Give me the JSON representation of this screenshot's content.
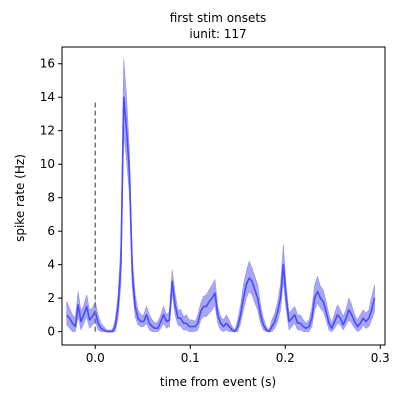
{
  "chart_data": {
    "type": "line",
    "title": "first stim onsets",
    "subtitle": "iunit: 117",
    "xlabel": "time from event (s)",
    "ylabel": "spike rate (Hz)",
    "xlim": [
      -0.035,
      0.305
    ],
    "ylim": [
      -0.8,
      17.0
    ],
    "xticks": [
      0.0,
      0.1,
      0.2,
      0.3
    ],
    "xtick_labels": [
      "0.0",
      "0.1",
      "0.2",
      "0.3"
    ],
    "yticks": [
      0,
      2,
      4,
      6,
      8,
      10,
      12,
      14,
      16
    ],
    "ytick_labels": [
      "0",
      "2",
      "4",
      "6",
      "8",
      "10",
      "12",
      "14",
      "16"
    ],
    "grid": false,
    "series": [
      {
        "name": "spike rate",
        "color": "#4b4bff",
        "band_color": "#8a8af5",
        "x": [
          -0.03,
          -0.027,
          -0.024,
          -0.021,
          -0.018,
          -0.015,
          -0.012,
          -0.009,
          -0.006,
          -0.003,
          0.0,
          0.003,
          0.006,
          0.009,
          0.012,
          0.015,
          0.018,
          0.021,
          0.024,
          0.027,
          0.03,
          0.033,
          0.036,
          0.039,
          0.042,
          0.045,
          0.048,
          0.051,
          0.054,
          0.057,
          0.06,
          0.063,
          0.066,
          0.069,
          0.072,
          0.075,
          0.078,
          0.081,
          0.084,
          0.087,
          0.09,
          0.093,
          0.096,
          0.099,
          0.102,
          0.105,
          0.108,
          0.111,
          0.114,
          0.117,
          0.12,
          0.123,
          0.126,
          0.129,
          0.132,
          0.135,
          0.138,
          0.141,
          0.144,
          0.147,
          0.15,
          0.153,
          0.156,
          0.159,
          0.162,
          0.165,
          0.168,
          0.171,
          0.174,
          0.177,
          0.18,
          0.183,
          0.186,
          0.189,
          0.192,
          0.195,
          0.198,
          0.201,
          0.204,
          0.207,
          0.21,
          0.213,
          0.216,
          0.219,
          0.222,
          0.225,
          0.228,
          0.231,
          0.234,
          0.237,
          0.24,
          0.243,
          0.246,
          0.249,
          0.252,
          0.255,
          0.258,
          0.261,
          0.264,
          0.267,
          0.27,
          0.273,
          0.276,
          0.279,
          0.282,
          0.285,
          0.288,
          0.291,
          0.294
        ],
        "mean": [
          1.0,
          0.8,
          0.5,
          0.3,
          1.6,
          0.6,
          1.0,
          1.5,
          0.7,
          0.9,
          1.2,
          0.5,
          0.2,
          0.1,
          0.0,
          0.0,
          0.0,
          0.3,
          1.5,
          4.0,
          14.0,
          12.0,
          9.5,
          3.5,
          1.5,
          0.8,
          0.6,
          0.6,
          1.0,
          0.5,
          0.3,
          0.2,
          0.2,
          0.6,
          1.0,
          0.6,
          0.7,
          3.0,
          1.6,
          0.8,
          0.8,
          0.5,
          0.5,
          0.3,
          0.3,
          0.3,
          0.5,
          1.2,
          1.5,
          1.5,
          1.8,
          2.0,
          2.3,
          1.0,
          0.5,
          0.3,
          0.5,
          0.3,
          0.1,
          0.0,
          0.3,
          1.0,
          2.0,
          2.8,
          3.2,
          3.0,
          2.5,
          2.0,
          1.0,
          0.4,
          0.1,
          0.0,
          0.3,
          0.6,
          1.2,
          2.0,
          4.0,
          2.0,
          0.6,
          0.8,
          1.0,
          0.5,
          0.5,
          0.3,
          0.2,
          0.3,
          0.8,
          2.0,
          2.4,
          2.0,
          1.8,
          1.2,
          0.5,
          0.2,
          0.6,
          1.0,
          0.8,
          0.4,
          0.8,
          1.3,
          1.0,
          0.6,
          0.3,
          0.5,
          0.8,
          0.6,
          0.8,
          1.3,
          2.0
        ],
        "lower": [
          0.4,
          0.2,
          0.0,
          0.0,
          0.9,
          0.1,
          0.5,
          0.9,
          0.2,
          0.4,
          0.6,
          0.1,
          0.0,
          0.0,
          0.0,
          0.0,
          0.0,
          0.0,
          0.8,
          2.8,
          11.8,
          10.2,
          8.2,
          2.6,
          0.9,
          0.4,
          0.3,
          0.3,
          0.5,
          0.1,
          0.0,
          0.0,
          0.0,
          0.2,
          0.5,
          0.2,
          0.3,
          2.3,
          1.0,
          0.4,
          0.3,
          0.1,
          0.1,
          0.0,
          0.0,
          0.0,
          0.1,
          0.7,
          0.9,
          0.9,
          1.1,
          1.3,
          1.6,
          0.5,
          0.1,
          0.0,
          0.1,
          0.0,
          0.0,
          0.0,
          0.0,
          0.5,
          1.3,
          2.0,
          2.4,
          2.2,
          1.7,
          1.3,
          0.5,
          0.1,
          0.0,
          0.0,
          0.0,
          0.2,
          0.6,
          1.3,
          3.0,
          1.3,
          0.1,
          0.3,
          0.5,
          0.1,
          0.1,
          0.0,
          0.0,
          0.0,
          0.3,
          1.3,
          1.7,
          1.4,
          1.2,
          0.7,
          0.1,
          0.0,
          0.2,
          0.5,
          0.4,
          0.1,
          0.4,
          0.7,
          0.5,
          0.2,
          0.0,
          0.1,
          0.4,
          0.2,
          0.3,
          0.7,
          1.2
        ],
        "upper": [
          1.8,
          1.4,
          1.0,
          0.8,
          2.4,
          1.2,
          1.6,
          2.2,
          1.3,
          1.4,
          1.8,
          1.0,
          0.5,
          0.3,
          0.1,
          0.1,
          0.1,
          0.7,
          2.2,
          5.3,
          16.3,
          14.0,
          10.7,
          4.5,
          2.2,
          1.3,
          1.0,
          1.0,
          1.5,
          1.0,
          0.7,
          0.5,
          0.6,
          1.0,
          1.5,
          1.0,
          1.2,
          3.7,
          2.3,
          1.3,
          1.3,
          0.9,
          1.0,
          0.7,
          0.7,
          0.6,
          1.0,
          1.7,
          2.1,
          2.2,
          2.5,
          2.8,
          3.1,
          1.5,
          0.9,
          0.7,
          1.0,
          0.7,
          0.3,
          0.1,
          0.7,
          1.6,
          2.8,
          3.6,
          4.2,
          3.8,
          3.3,
          2.8,
          1.6,
          0.8,
          0.3,
          0.1,
          0.7,
          1.1,
          1.8,
          2.8,
          5.2,
          2.7,
          1.1,
          1.3,
          1.5,
          1.0,
          1.0,
          0.7,
          0.5,
          0.7,
          1.4,
          2.8,
          3.3,
          2.7,
          2.5,
          1.8,
          1.0,
          0.5,
          1.1,
          1.6,
          1.3,
          0.9,
          1.3,
          2.0,
          1.6,
          1.0,
          0.7,
          1.0,
          1.3,
          1.1,
          1.3,
          2.1,
          2.8
        ]
      }
    ],
    "annotations": [
      {
        "type": "vline",
        "x": 0.0,
        "y_from": 0.0,
        "y_to": 13.8,
        "style": "dashed",
        "color": "#777777"
      }
    ]
  }
}
